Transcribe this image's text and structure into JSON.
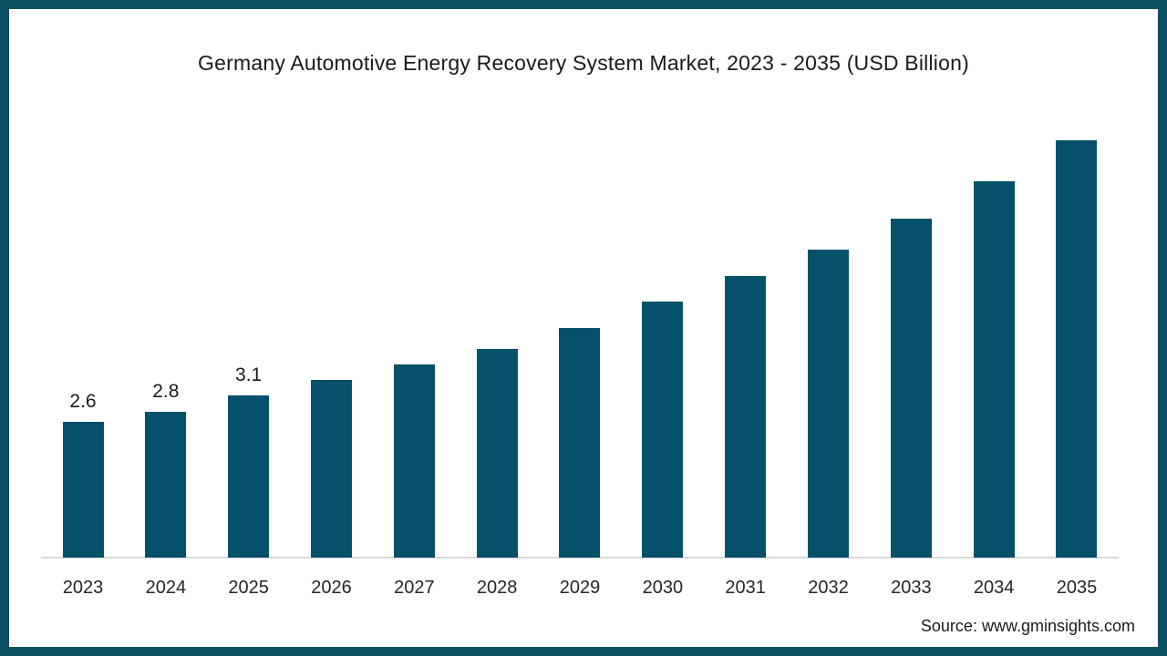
{
  "frame": {
    "border_color": "#0b4f63",
    "background_color": "#ffffff"
  },
  "title": "Germany Automotive Energy Recovery System Market, 2023 - 2035 (USD Billion)",
  "source": "Source: www.gminsights.com",
  "chart_data": {
    "type": "bar",
    "title": "Germany Automotive Energy Recovery System Market, 2023 - 2035 (USD Billion)",
    "categories": [
      "2023",
      "2024",
      "2025",
      "2026",
      "2027",
      "2028",
      "2029",
      "2030",
      "2031",
      "2032",
      "2033",
      "2034",
      "2035"
    ],
    "values": [
      2.6,
      2.8,
      3.1,
      3.4,
      3.7,
      4.0,
      4.4,
      4.9,
      5.4,
      5.9,
      6.5,
      7.2,
      8.0
    ],
    "data_labels": [
      "2.6",
      "2.8",
      "3.1",
      "",
      "",
      "",
      "",
      "",
      "",
      "",
      "",
      "",
      ""
    ],
    "xlabel": "",
    "ylabel": "",
    "ylim": [
      0,
      8.5
    ],
    "grid": false,
    "legend": false,
    "bar_color": "#05506a",
    "axis_line_color": "#d9d9d9",
    "label_color": "#1a1a1a"
  }
}
